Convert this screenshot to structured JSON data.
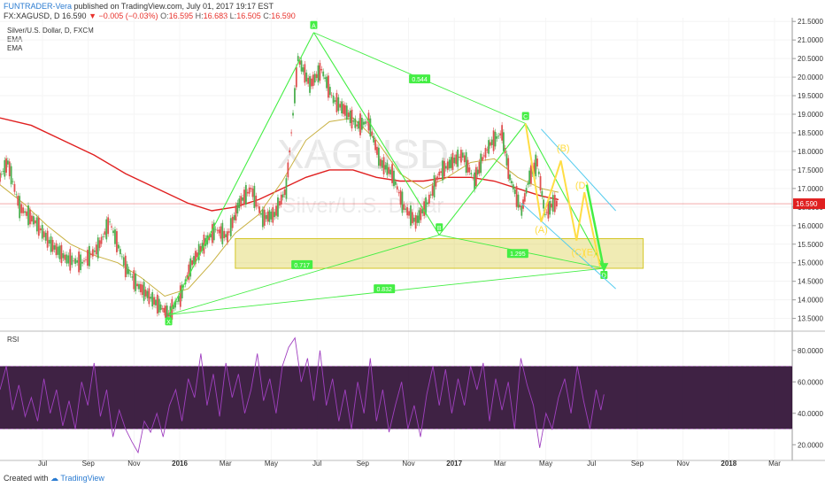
{
  "header": {
    "author": "FUNTRADER-Vera",
    "published_text": "published on TradingView.com, July 01, 2017 19:17 EST"
  },
  "quote": {
    "symbol": "FX:XAGUSD, D",
    "price": "16.590",
    "change": "▼ −0.005 (−0.03%)",
    "open_label": "O:",
    "open": "16.595",
    "high_label": "H:",
    "high": "16.683",
    "low_label": "L:",
    "low": "16.505",
    "close_label": "C:",
    "close": "16.590"
  },
  "legend": {
    "title": "Silver/U.S. Dollar, D, FXCM",
    "ema1": "EMA",
    "ema2": "EMA"
  },
  "watermark": {
    "symbol": "XAGUSD",
    "name": "Silver/U.S. Dollar"
  },
  "rsi_label": "RSI",
  "footer": {
    "created_with": "Created with",
    "brand": "TradingView"
  },
  "colors": {
    "accent_green": "#44ee44",
    "ema_short": "#c8b040",
    "ema_long": "#e02020",
    "channel": "#55ccee",
    "waves": "#ffdd44",
    "rsi": "#a040c0",
    "rsi_band": "#2a0a30",
    "zone": "#d4c628"
  },
  "chart_data": {
    "type": "line",
    "y_axis": {
      "ticks": [
        "21.5000",
        "21.0000",
        "20.5000",
        "20.0000",
        "19.5000",
        "19.0000",
        "18.5000",
        "18.0000",
        "17.5000",
        "17.0000",
        "16.5000",
        "16.0000",
        "15.5000",
        "15.0000",
        "14.5000",
        "14.0000",
        "13.5000"
      ],
      "min": 13.3,
      "max": 21.6
    },
    "x_axis": {
      "ticks": [
        "Jul",
        "Sep",
        "Nov",
        "2016",
        "Mar",
        "May",
        "Jul",
        "Sep",
        "Nov",
        "2017",
        "Mar",
        "May",
        "Jul",
        "Sep",
        "Nov",
        "2018",
        "Mar"
      ],
      "bold": [
        "2016",
        "2017",
        "2018"
      ],
      "start": 0,
      "end": 1010
    },
    "current_price": 16.59,
    "price_label": "16.590",
    "price_series": [
      [
        0,
        17.3
      ],
      [
        10,
        17.7
      ],
      [
        25,
        16.5
      ],
      [
        45,
        16.1
      ],
      [
        65,
        15.5
      ],
      [
        85,
        15.1
      ],
      [
        105,
        15.0
      ],
      [
        125,
        15.4
      ],
      [
        140,
        16.1
      ],
      [
        160,
        14.9
      ],
      [
        175,
        14.4
      ],
      [
        190,
        14.1
      ],
      [
        205,
        13.8
      ],
      [
        215,
        13.6
      ],
      [
        230,
        14.1
      ],
      [
        245,
        15.0
      ],
      [
        260,
        15.5
      ],
      [
        275,
        15.9
      ],
      [
        290,
        15.7
      ],
      [
        305,
        16.6
      ],
      [
        320,
        17.0
      ],
      [
        335,
        16.2
      ],
      [
        350,
        16.3
      ],
      [
        365,
        17.0
      ],
      [
        380,
        20.5
      ],
      [
        395,
        19.8
      ],
      [
        410,
        20.2
      ],
      [
        425,
        19.4
      ],
      [
        440,
        19.1
      ],
      [
        455,
        18.7
      ],
      [
        470,
        18.8
      ],
      [
        485,
        17.7
      ],
      [
        500,
        17.4
      ],
      [
        515,
        16.5
      ],
      [
        530,
        16.1
      ],
      [
        545,
        16.6
      ],
      [
        560,
        17.4
      ],
      [
        575,
        17.7
      ],
      [
        590,
        17.9
      ],
      [
        605,
        17.2
      ],
      [
        615,
        17.8
      ],
      [
        625,
        18.2
      ],
      [
        640,
        18.5
      ],
      [
        650,
        17.3
      ],
      [
        665,
        16.4
      ],
      [
        675,
        17.3
      ],
      [
        685,
        17.7
      ],
      [
        695,
        16.3
      ],
      [
        705,
        16.6
      ],
      [
        712,
        16.59
      ]
    ],
    "ema_short_series": [
      [
        0,
        17.1
      ],
      [
        30,
        16.6
      ],
      [
        60,
        16.0
      ],
      [
        90,
        15.5
      ],
      [
        120,
        15.2
      ],
      [
        150,
        15.0
      ],
      [
        180,
        14.6
      ],
      [
        210,
        14.1
      ],
      [
        240,
        14.3
      ],
      [
        270,
        15.0
      ],
      [
        300,
        15.8
      ],
      [
        330,
        16.3
      ],
      [
        360,
        17.2
      ],
      [
        390,
        18.3
      ],
      [
        420,
        18.8
      ],
      [
        450,
        18.9
      ],
      [
        480,
        18.3
      ],
      [
        510,
        17.4
      ],
      [
        540,
        17.0
      ],
      [
        570,
        17.3
      ],
      [
        600,
        17.7
      ],
      [
        630,
        17.8
      ],
      [
        660,
        17.3
      ],
      [
        690,
        17.0
      ],
      [
        712,
        16.9
      ]
    ],
    "ema_long_series": [
      [
        0,
        18.9
      ],
      [
        40,
        18.7
      ],
      [
        80,
        18.3
      ],
      [
        120,
        17.9
      ],
      [
        160,
        17.4
      ],
      [
        200,
        17.0
      ],
      [
        240,
        16.6
      ],
      [
        270,
        16.4
      ],
      [
        300,
        16.5
      ],
      [
        330,
        16.7
      ],
      [
        360,
        17.0
      ],
      [
        390,
        17.3
      ],
      [
        420,
        17.5
      ],
      [
        450,
        17.5
      ],
      [
        480,
        17.3
      ],
      [
        510,
        17.2
      ],
      [
        540,
        17.2
      ],
      [
        570,
        17.3
      ],
      [
        600,
        17.3
      ],
      [
        630,
        17.2
      ],
      [
        660,
        17.0
      ],
      [
        690,
        16.8
      ],
      [
        712,
        16.7
      ]
    ],
    "zone": {
      "x": [
        300,
        820
      ],
      "y": [
        14.85,
        15.65
      ]
    },
    "pattern": {
      "points": [
        {
          "label": "X",
          "x": 215,
          "y": 13.6
        },
        {
          "label": "A",
          "x": 400,
          "y": 21.2
        },
        {
          "label": "B",
          "x": 560,
          "y": 15.75
        },
        {
          "label": "C",
          "x": 670,
          "y": 18.75
        },
        {
          "label": "D",
          "x": 770,
          "y": 14.85
        }
      ],
      "ratios": [
        {
          "label": "0.544",
          "x": 535,
          "y": 19.95
        },
        {
          "label": "0.717",
          "x": 385,
          "y": 14.95
        },
        {
          "label": "0.832",
          "x": 490,
          "y": 14.3
        },
        {
          "label": "1.295",
          "x": 660,
          "y": 15.25
        }
      ]
    },
    "waves": {
      "path": [
        [
          670,
          18.75
        ],
        [
          690,
          16.1
        ],
        [
          715,
          17.75
        ],
        [
          735,
          15.6
        ],
        [
          745,
          16.9
        ],
        [
          765,
          14.9
        ]
      ],
      "labels": [
        {
          "label": "(A)",
          "x": 690,
          "y": 15.8
        },
        {
          "label": "(B)",
          "x": 718,
          "y": 18.0
        },
        {
          "label": "(C)",
          "x": 737,
          "y": 15.2
        },
        {
          "label": "(D)",
          "x": 742,
          "y": 17.0
        },
        {
          "label": "(E)",
          "x": 752,
          "y": 15.2
        }
      ]
    },
    "channel": {
      "upper": [
        [
          690,
          18.6
        ],
        [
          785,
          16.4
        ]
      ],
      "lower": [
        [
          665,
          16.6
        ],
        [
          785,
          14.3
        ]
      ]
    },
    "projection": [
      [
        748,
        17.1
      ],
      [
        770,
        14.8
      ]
    ],
    "rsi": {
      "levels": [
        70,
        30
      ],
      "ticks": [
        "80.0000",
        "60.0000",
        "40.0000",
        "20.0000"
      ],
      "min": 10,
      "max": 90,
      "series": [
        [
          0,
          55
        ],
        [
          8,
          70
        ],
        [
          16,
          42
        ],
        [
          24,
          58
        ],
        [
          32,
          38
        ],
        [
          40,
          50
        ],
        [
          48,
          35
        ],
        [
          56,
          62
        ],
        [
          64,
          40
        ],
        [
          72,
          55
        ],
        [
          80,
          32
        ],
        [
          88,
          48
        ],
        [
          96,
          30
        ],
        [
          104,
          60
        ],
        [
          112,
          45
        ],
        [
          120,
          72
        ],
        [
          128,
          38
        ],
        [
          136,
          55
        ],
        [
          144,
          25
        ],
        [
          152,
          42
        ],
        [
          160,
          30
        ],
        [
          168,
          22
        ],
        [
          176,
          15
        ],
        [
          184,
          35
        ],
        [
          192,
          28
        ],
        [
          200,
          40
        ],
        [
          208,
          25
        ],
        [
          216,
          45
        ],
        [
          224,
          55
        ],
        [
          232,
          35
        ],
        [
          240,
          62
        ],
        [
          248,
          50
        ],
        [
          256,
          78
        ],
        [
          264,
          45
        ],
        [
          272,
          65
        ],
        [
          280,
          38
        ],
        [
          288,
          72
        ],
        [
          296,
          50
        ],
        [
          304,
          65
        ],
        [
          312,
          40
        ],
        [
          320,
          55
        ],
        [
          328,
          78
        ],
        [
          336,
          48
        ],
        [
          344,
          62
        ],
        [
          352,
          40
        ],
        [
          360,
          70
        ],
        [
          368,
          82
        ],
        [
          376,
          88
        ],
        [
          384,
          60
        ],
        [
          392,
          75
        ],
        [
          400,
          48
        ],
        [
          408,
          80
        ],
        [
          416,
          45
        ],
        [
          424,
          62
        ],
        [
          432,
          35
        ],
        [
          440,
          55
        ],
        [
          448,
          30
        ],
        [
          456,
          60
        ],
        [
          464,
          40
        ],
        [
          472,
          75
        ],
        [
          480,
          35
        ],
        [
          488,
          55
        ],
        [
          496,
          28
        ],
        [
          504,
          45
        ],
        [
          512,
          60
        ],
        [
          520,
          30
        ],
        [
          528,
          45
        ],
        [
          536,
          25
        ],
        [
          544,
          52
        ],
        [
          552,
          70
        ],
        [
          560,
          45
        ],
        [
          568,
          68
        ],
        [
          576,
          40
        ],
        [
          584,
          62
        ],
        [
          592,
          45
        ],
        [
          600,
          70
        ],
        [
          608,
          55
        ],
        [
          616,
          72
        ],
        [
          624,
          35
        ],
        [
          632,
          62
        ],
        [
          640,
          42
        ],
        [
          648,
          60
        ],
        [
          656,
          30
        ],
        [
          664,
          75
        ],
        [
          672,
          58
        ],
        [
          680,
          45
        ],
        [
          688,
          18
        ],
        [
          696,
          40
        ],
        [
          704,
          30
        ],
        [
          712,
          50
        ],
        [
          720,
          62
        ],
        [
          728,
          40
        ],
        [
          736,
          70
        ],
        [
          744,
          48
        ],
        [
          752,
          30
        ],
        [
          760,
          55
        ],
        [
          766,
          42
        ],
        [
          770,
          52
        ]
      ]
    }
  }
}
